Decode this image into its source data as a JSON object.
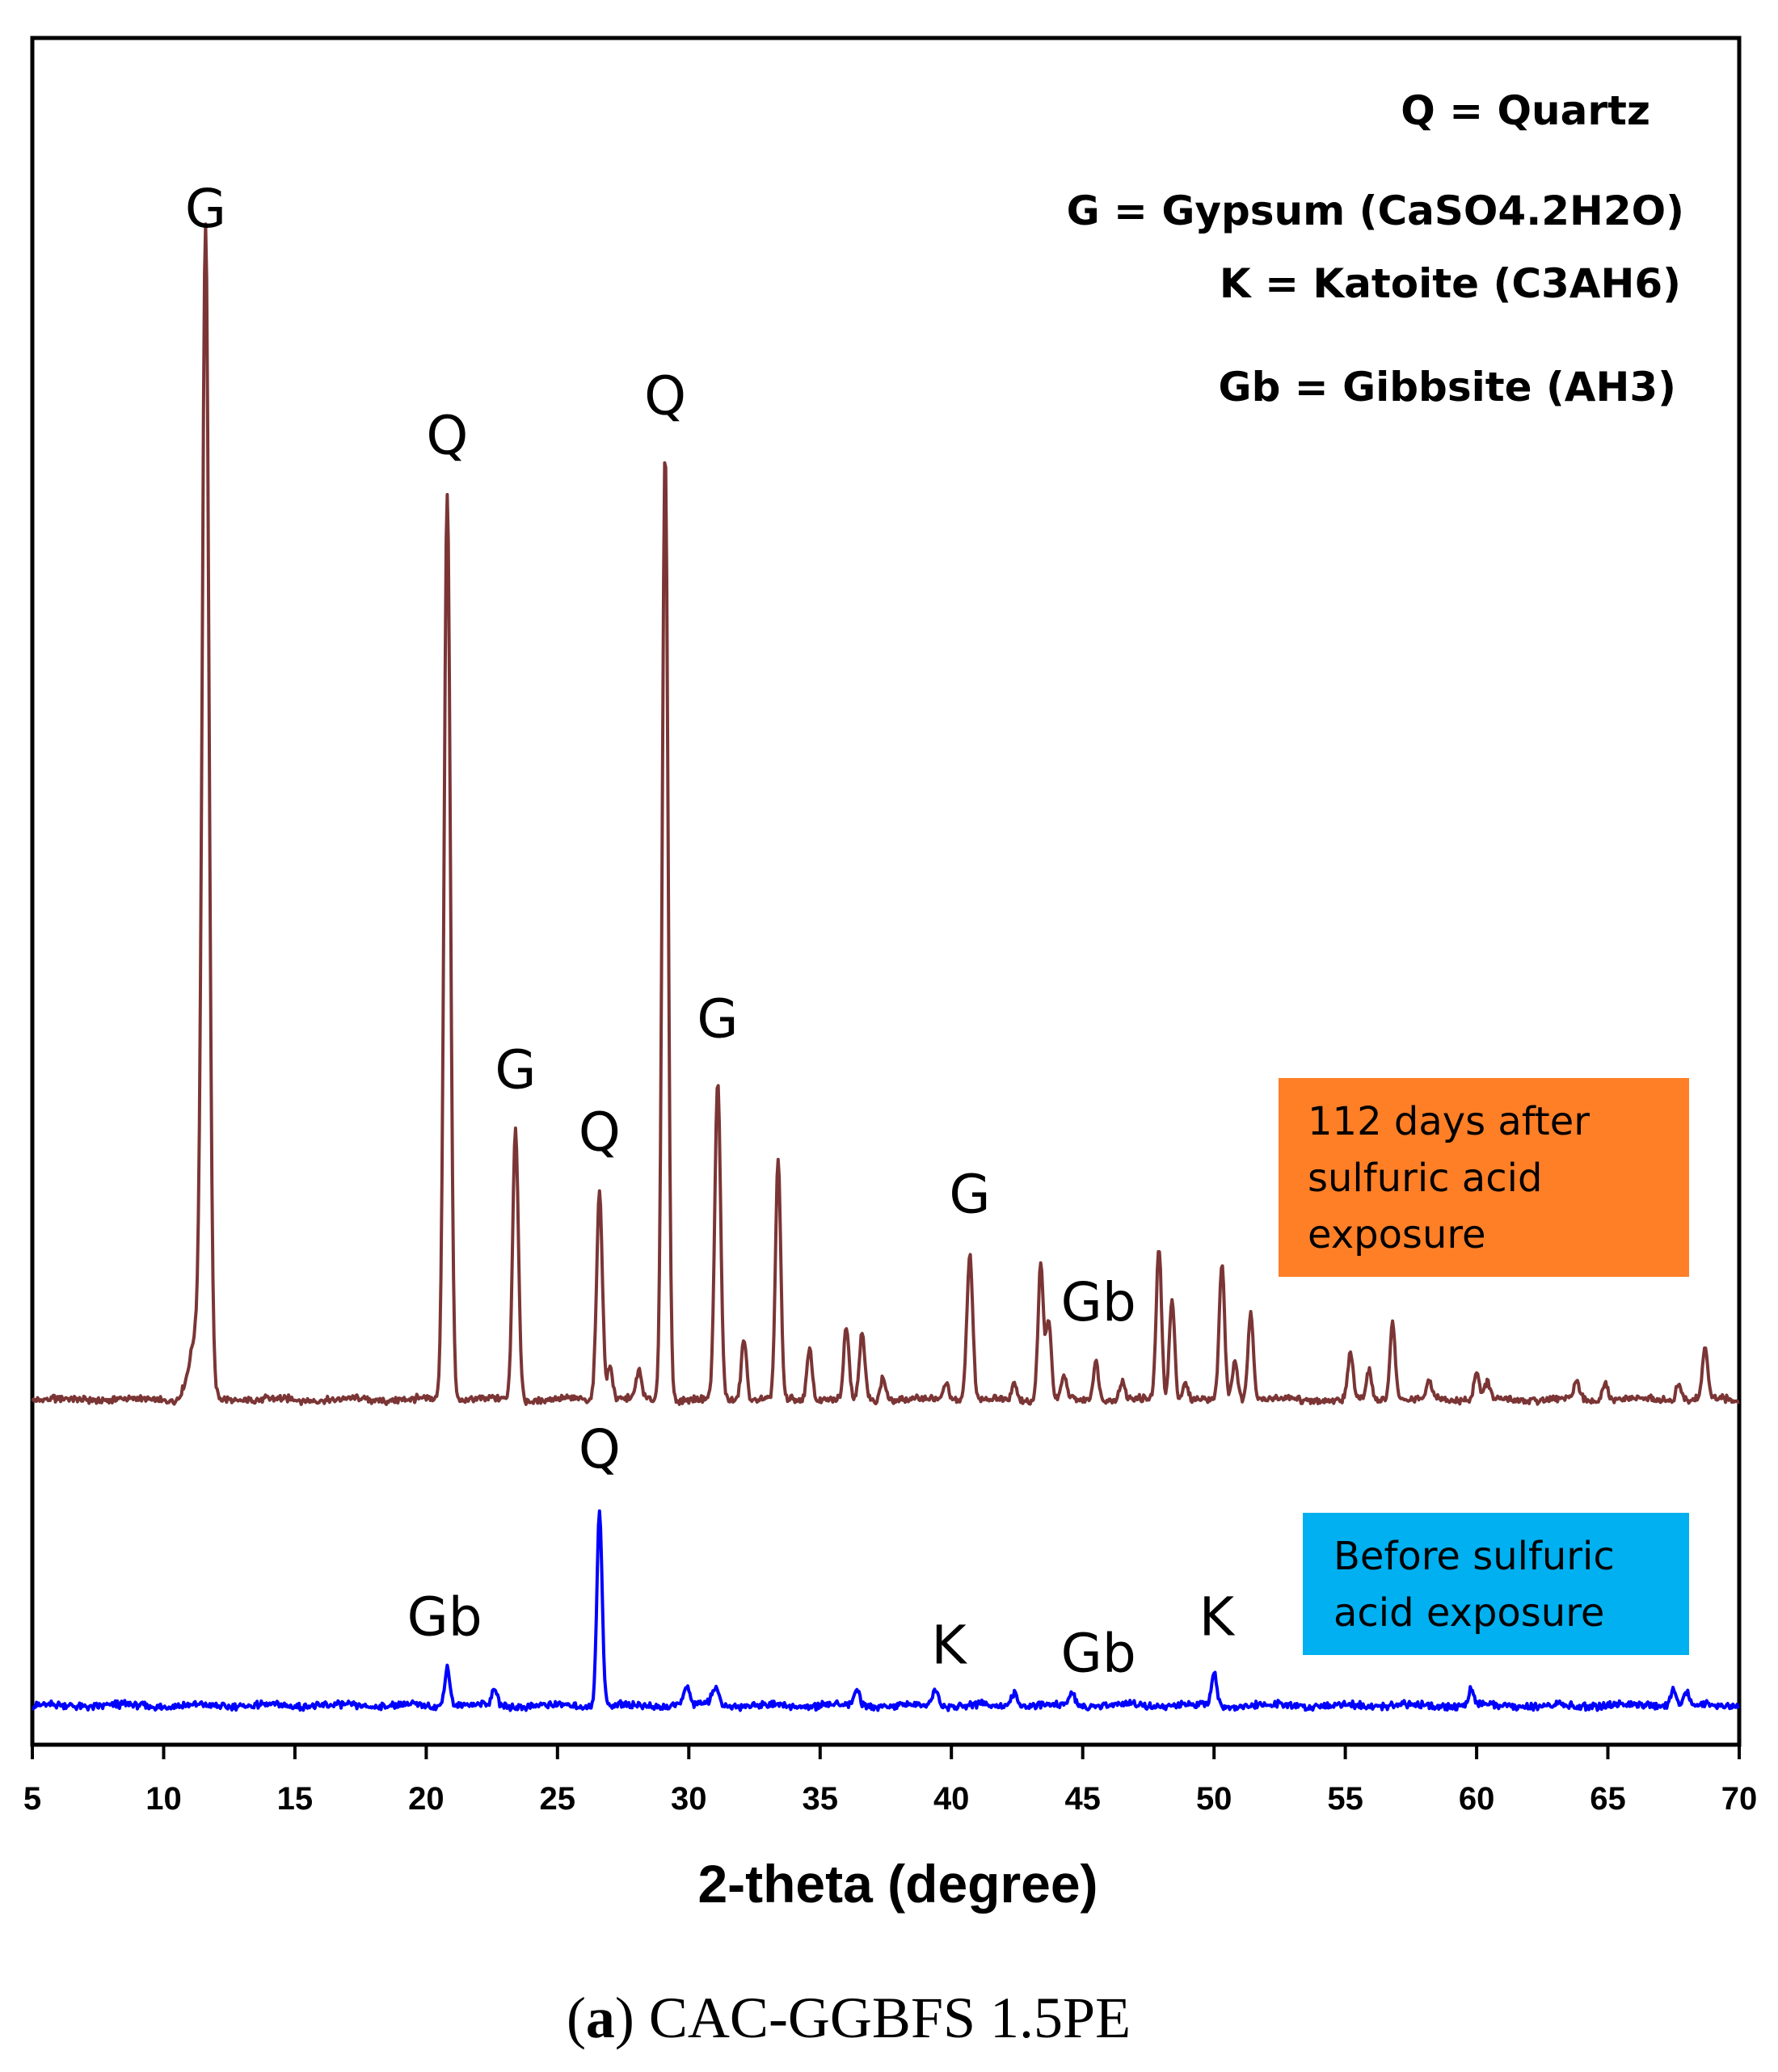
{
  "chart_data": {
    "type": "line",
    "title": "",
    "xlabel": "2-theta (degree)",
    "ylabel": "",
    "xlim": [
      5,
      70
    ],
    "xticks": [
      "5",
      "10",
      "15",
      "20",
      "25",
      "30",
      "35",
      "40",
      "45",
      "50",
      "55",
      "60",
      "65",
      "70"
    ],
    "grid": false,
    "legend_entries": [
      {
        "id": "q",
        "text": "Q = Quartz"
      },
      {
        "id": "g",
        "text": "G = Gypsum (CaSO4.2H2O)"
      },
      {
        "id": "k",
        "text": "K = Katoite (C3AH6)"
      },
      {
        "id": "gb",
        "text": "Gb = Gibbsite (AH3)"
      }
    ],
    "series": [
      {
        "name": "112 days after sulfuric acid exposure",
        "label_lines": [
          "112 days after",
          "sulfuric acid",
          "exposure"
        ],
        "color": "#7B3535",
        "box_color": "#FF7F27",
        "baseline_intensity": 0,
        "peaks": [
          {
            "x": 11.6,
            "h": 100,
            "w": 0.13
          },
          {
            "x": 11.3,
            "h": 6,
            "w": 0.3
          },
          {
            "x": 20.8,
            "h": 80,
            "w": 0.12
          },
          {
            "x": 23.4,
            "h": 24,
            "w": 0.11
          },
          {
            "x": 26.6,
            "h": 18.5,
            "w": 0.11
          },
          {
            "x": 27.0,
            "h": 3,
            "w": 0.1
          },
          {
            "x": 28.1,
            "h": 2.5,
            "w": 0.1
          },
          {
            "x": 29.1,
            "h": 84,
            "w": 0.11
          },
          {
            "x": 31.1,
            "h": 28,
            "w": 0.11
          },
          {
            "x": 32.1,
            "h": 5.5,
            "w": 0.1
          },
          {
            "x": 33.4,
            "h": 21,
            "w": 0.1
          },
          {
            "x": 34.6,
            "h": 4.5,
            "w": 0.1
          },
          {
            "x": 36.0,
            "h": 6.5,
            "w": 0.1
          },
          {
            "x": 36.6,
            "h": 6,
            "w": 0.1
          },
          {
            "x": 37.4,
            "h": 2,
            "w": 0.1
          },
          {
            "x": 39.8,
            "h": 1.5,
            "w": 0.1
          },
          {
            "x": 40.7,
            "h": 13,
            "w": 0.11
          },
          {
            "x": 42.4,
            "h": 1.5,
            "w": 0.1
          },
          {
            "x": 43.4,
            "h": 12,
            "w": 0.1
          },
          {
            "x": 43.7,
            "h": 7,
            "w": 0.1
          },
          {
            "x": 44.3,
            "h": 2,
            "w": 0.1
          },
          {
            "x": 45.5,
            "h": 3.5,
            "w": 0.1
          },
          {
            "x": 46.5,
            "h": 1.5,
            "w": 0.1
          },
          {
            "x": 47.9,
            "h": 13.5,
            "w": 0.1
          },
          {
            "x": 48.4,
            "h": 9,
            "w": 0.1
          },
          {
            "x": 48.9,
            "h": 1.5,
            "w": 0.1
          },
          {
            "x": 50.3,
            "h": 12,
            "w": 0.1
          },
          {
            "x": 50.8,
            "h": 3.5,
            "w": 0.1
          },
          {
            "x": 51.4,
            "h": 8,
            "w": 0.1
          },
          {
            "x": 55.2,
            "h": 4,
            "w": 0.1
          },
          {
            "x": 55.9,
            "h": 2.5,
            "w": 0.1
          },
          {
            "x": 56.8,
            "h": 7,
            "w": 0.1
          },
          {
            "x": 58.2,
            "h": 1.5,
            "w": 0.1
          },
          {
            "x": 60.0,
            "h": 2.5,
            "w": 0.1
          },
          {
            "x": 60.4,
            "h": 1.5,
            "w": 0.1
          },
          {
            "x": 63.8,
            "h": 1.5,
            "w": 0.1
          },
          {
            "x": 64.9,
            "h": 1.5,
            "w": 0.1
          },
          {
            "x": 67.7,
            "h": 1.5,
            "w": 0.1
          },
          {
            "x": 68.7,
            "h": 4.5,
            "w": 0.1
          }
        ]
      },
      {
        "name": "Before sulfuric acid exposure",
        "label_lines": [
          "Before sulfuric",
          "acid exposure"
        ],
        "color": "#0000FF",
        "box_color": "#00B0F0",
        "baseline_intensity": -27,
        "peaks": [
          {
            "x": 20.8,
            "h": 3.5,
            "w": 0.1
          },
          {
            "x": 22.6,
            "h": 1.5,
            "w": 0.1
          },
          {
            "x": 26.6,
            "h": 17,
            "w": 0.1
          },
          {
            "x": 29.9,
            "h": 1.5,
            "w": 0.12
          },
          {
            "x": 31.0,
            "h": 1.5,
            "w": 0.15
          },
          {
            "x": 36.4,
            "h": 1.5,
            "w": 0.1
          },
          {
            "x": 39.4,
            "h": 1.5,
            "w": 0.1
          },
          {
            "x": 42.4,
            "h": 1.3,
            "w": 0.1
          },
          {
            "x": 44.6,
            "h": 1.2,
            "w": 0.1
          },
          {
            "x": 50.0,
            "h": 3,
            "w": 0.1
          },
          {
            "x": 59.8,
            "h": 1.5,
            "w": 0.1
          },
          {
            "x": 67.5,
            "h": 1.5,
            "w": 0.1
          },
          {
            "x": 68.0,
            "h": 1.2,
            "w": 0.1
          }
        ]
      }
    ],
    "annotations": [
      {
        "text": "G",
        "x": 11.6,
        "y": 103.5,
        "series": 0
      },
      {
        "text": "Q",
        "x": 20.8,
        "y": 83.5,
        "series": 0
      },
      {
        "text": "Q",
        "x": 29.1,
        "y": 87,
        "series": 0
      },
      {
        "text": "G",
        "x": 23.4,
        "y": 27.5,
        "series": 0
      },
      {
        "text": "Q",
        "x": 26.6,
        "y": 22,
        "series": 0
      },
      {
        "text": "G",
        "x": 31.1,
        "y": 32,
        "series": 0
      },
      {
        "text": "G",
        "x": 40.7,
        "y": 16.5,
        "series": 0
      },
      {
        "text": "Gb",
        "x": 45.6,
        "y": 7,
        "series": 0
      },
      {
        "text": "Q",
        "x": 26.6,
        "y": -6,
        "series": 1
      },
      {
        "text": "Gb",
        "x": 20.7,
        "y": -20.8,
        "series": 1
      },
      {
        "text": "K",
        "x": 39.9,
        "y": -23.3,
        "series": 1
      },
      {
        "text": "Gb",
        "x": 45.6,
        "y": -24,
        "series": 1
      },
      {
        "text": "K",
        "x": 50.1,
        "y": -20.8,
        "series": 1
      }
    ],
    "caption_letter": "a",
    "caption_text": "CAC-GGBFS 1.5PE"
  }
}
